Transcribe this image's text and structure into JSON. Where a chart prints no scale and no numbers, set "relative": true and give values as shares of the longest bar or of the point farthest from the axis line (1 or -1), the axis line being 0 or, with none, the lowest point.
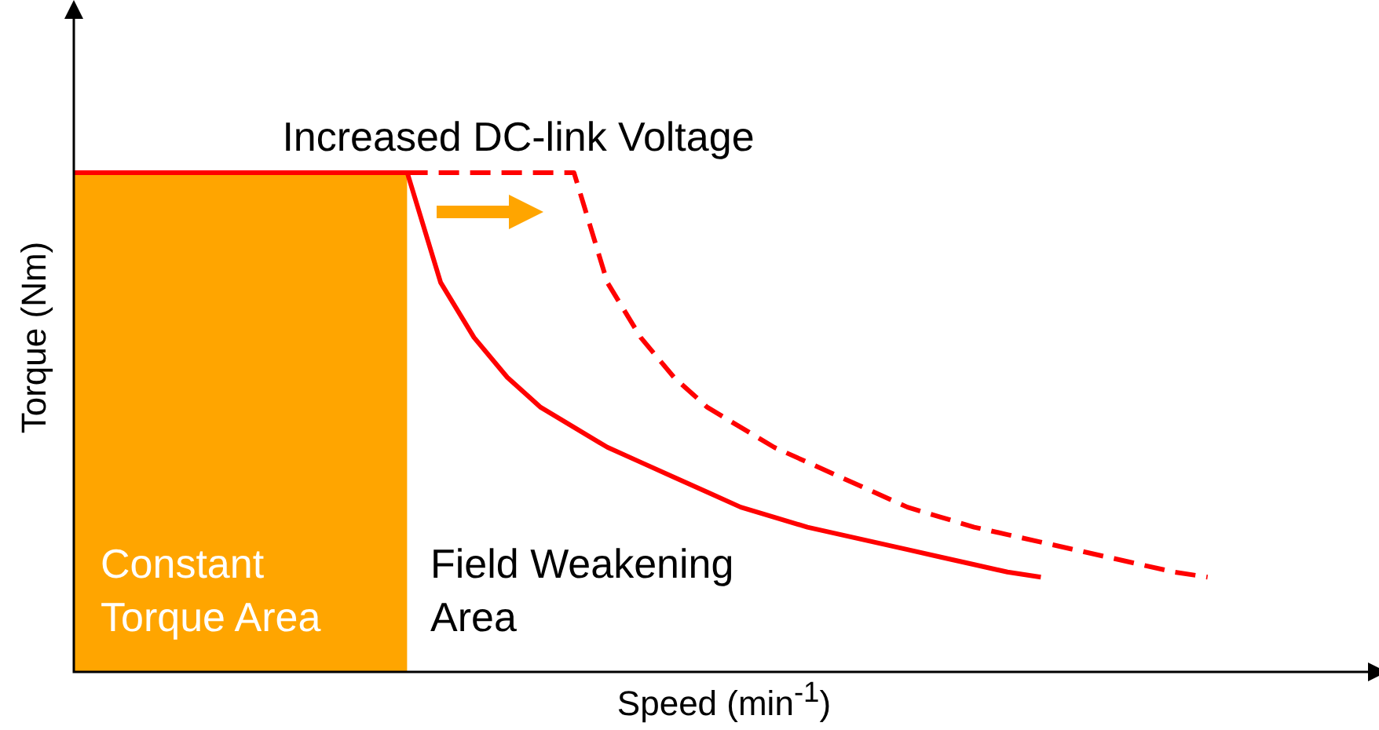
{
  "chart_data": {
    "type": "line",
    "relative": true,
    "xlabel": "Speed (min$^{-1}$)",
    "ylabel": "Torque (Nm)",
    "annotations": [
      "Increased DC-link Voltage",
      "Constant Torque Area",
      "Field Weakening Area"
    ],
    "categories": [
      null,
      null,
      null,
      null,
      null,
      null,
      null,
      null,
      null,
      null,
      null,
      null,
      null,
      null,
      null,
      null,
      null,
      null,
      null,
      null,
      null,
      null,
      null,
      null,
      null,
      null,
      null,
      null,
      null,
      null,
      null,
      null,
      null,
      null,
      null,
      null,
      null,
      null,
      null,
      null
    ],
    "series": [
      {
        "type": "area",
        "color": "#ffa500",
        "values": [
          1,
          1,
          1,
          1,
          1,
          1,
          1,
          1,
          1,
          1,
          1,
          null,
          null,
          null,
          null,
          null,
          null,
          null,
          null,
          null,
          null,
          null,
          null,
          null,
          null,
          null,
          null,
          null,
          null,
          null,
          null,
          null,
          null,
          null,
          null,
          null,
          null,
          null,
          null,
          null
        ]
      },
      {
        "color": "#ff0000",
        "line_style": "solid",
        "values": [
          1,
          1,
          1,
          1,
          1,
          1,
          1,
          1,
          1,
          1,
          1,
          0.78,
          0.67,
          0.59,
          0.53,
          0.49,
          0.45,
          0.42,
          0.39,
          0.36,
          0.33,
          0.31,
          0.29,
          0.275,
          0.26,
          0.245,
          0.23,
          0.215,
          0.2,
          0.19,
          null,
          null,
          null,
          null,
          null,
          null,
          null,
          null,
          null,
          null
        ]
      },
      {
        "color": "#ff0000",
        "line_style": "dashed",
        "values": [
          null,
          null,
          null,
          null,
          null,
          null,
          null,
          null,
          null,
          null,
          1,
          1,
          1,
          1,
          1,
          1,
          0.78,
          0.67,
          0.59,
          0.53,
          0.49,
          0.45,
          0.42,
          0.39,
          0.36,
          0.33,
          0.31,
          0.29,
          0.275,
          0.26,
          0.245,
          0.23,
          0.215,
          0.2,
          0.19,
          null,
          null,
          null,
          null,
          null
        ]
      }
    ],
    "legend": false,
    "tick_labels": false,
    "marker": "none"
  }
}
